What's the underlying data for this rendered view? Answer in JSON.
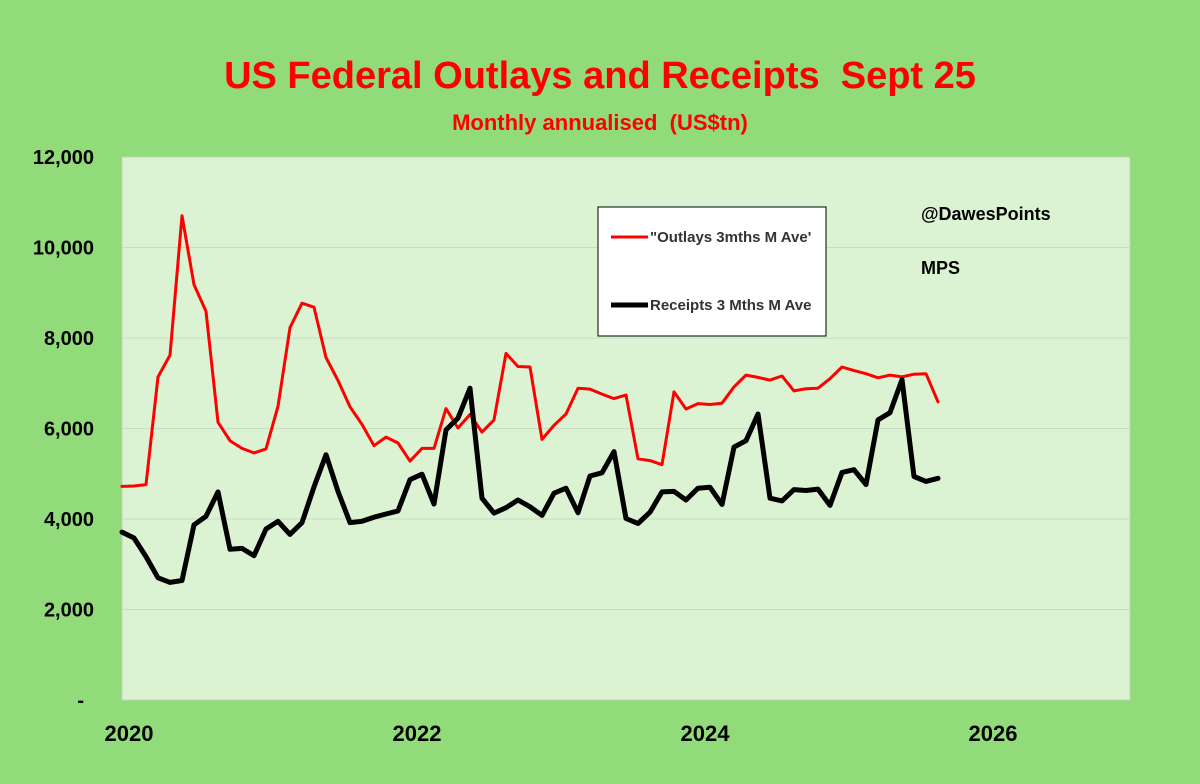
{
  "chart_data": {
    "type": "line",
    "title": "US Federal Outlays and Receipts  Sept 25",
    "subtitle": "Monthly annualised  (US$tn)",
    "ylim": [
      0,
      12000
    ],
    "y_ticks": [
      {
        "value": 0,
        "label": "-"
      },
      {
        "value": 2000,
        "label": "2,000"
      },
      {
        "value": 4000,
        "label": "4,000"
      },
      {
        "value": 6000,
        "label": "6,000"
      },
      {
        "value": 8000,
        "label": "8,000"
      },
      {
        "value": 10000,
        "label": "10,000"
      },
      {
        "value": 12000,
        "label": "12,000"
      }
    ],
    "x_ticks": [
      {
        "value": "2020-01",
        "label": "2020"
      },
      {
        "value": "2022-01",
        "label": "2022"
      },
      {
        "value": "2024-01",
        "label": "2024"
      },
      {
        "value": "2026-01",
        "label": "2026"
      }
    ],
    "xlim": [
      "2020-01",
      "2026-12"
    ],
    "grid": true,
    "legend_position": "top-center",
    "annotations": [
      "@DawesPoints",
      "MPS"
    ],
    "series": [
      {
        "name": "\"Outlays 3mths M Ave'",
        "color": "#ff0000",
        "start": "2020-01",
        "values": [
          4720,
          4730,
          4760,
          7140,
          7620,
          10700,
          9180,
          8590,
          6140,
          5730,
          5560,
          5460,
          5550,
          6490,
          8230,
          8770,
          8680,
          7570,
          7060,
          6480,
          6090,
          5620,
          5810,
          5680,
          5280,
          5560,
          5560,
          6440,
          6010,
          6310,
          5920,
          6190,
          7660,
          7370,
          7360,
          5760,
          6070,
          6320,
          6890,
          6870,
          6760,
          6660,
          6740,
          5330,
          5290,
          5200,
          6810,
          6430,
          6550,
          6530,
          6560,
          6920,
          7180,
          7130,
          7070,
          7160,
          6830,
          6880,
          6890,
          7100,
          7360,
          7280,
          7210,
          7120,
          7180,
          7140,
          7200,
          7210,
          6590
        ]
      },
      {
        "name": "Receipts 3 Mths M Ave",
        "color": "#000000",
        "start": "2020-01",
        "values": [
          3710,
          3580,
          3170,
          2700,
          2600,
          2640,
          3870,
          4060,
          4600,
          3330,
          3350,
          3190,
          3780,
          3950,
          3660,
          3920,
          4710,
          5420,
          4610,
          3920,
          3950,
          4040,
          4110,
          4180,
          4870,
          4990,
          4330,
          5970,
          6230,
          6890,
          4460,
          4130,
          4250,
          4420,
          4270,
          4080,
          4570,
          4680,
          4140,
          4950,
          5020,
          5490,
          4010,
          3900,
          4150,
          4600,
          4610,
          4420,
          4680,
          4700,
          4320,
          5590,
          5730,
          6320,
          4460,
          4400,
          4650,
          4630,
          4660,
          4300,
          5030,
          5090,
          4760,
          6190,
          6350,
          7080,
          4940,
          4830,
          4900
        ]
      }
    ]
  }
}
